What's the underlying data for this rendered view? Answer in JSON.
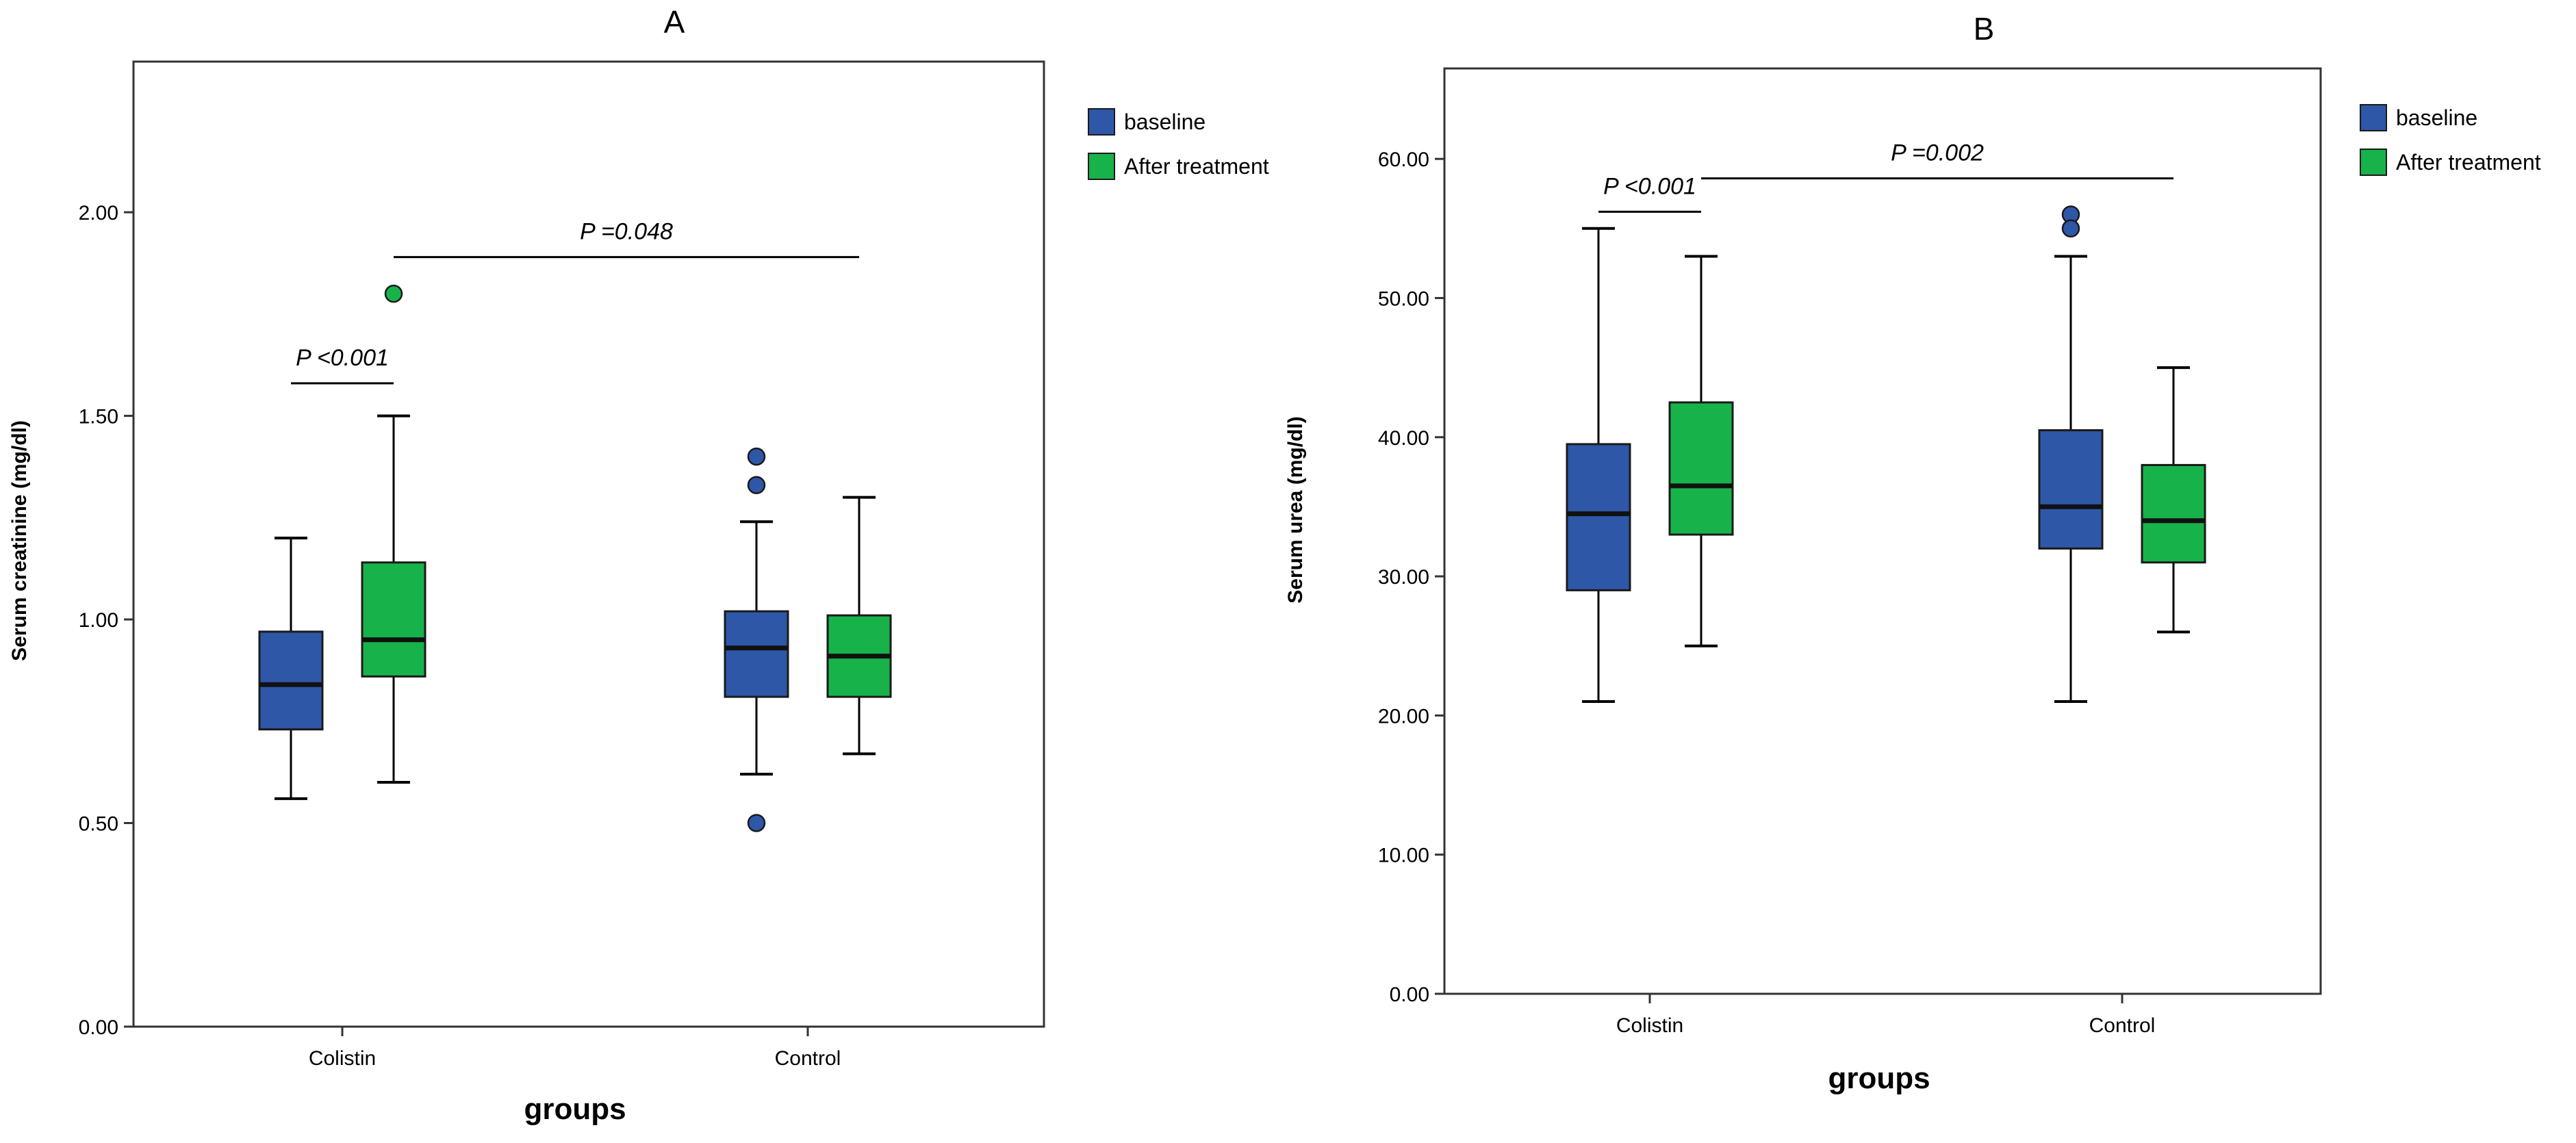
{
  "colors": {
    "baseline": "#2e57a8",
    "after": "#17b34a",
    "frame": "#333333",
    "median": "#111111"
  },
  "chart_data": [
    {
      "type": "box",
      "panel_label": "A",
      "ylabel": "Serum creatinine (mg/dl)",
      "xlabel": "groups",
      "ylim": [
        0,
        2.37
      ],
      "yticks": [
        0,
        0.5,
        1.0,
        1.5,
        2.0
      ],
      "ytick_labels": [
        "0.00",
        "0.50",
        "1.00",
        "1.50",
        "2.00"
      ],
      "categories": [
        "Colistin",
        "Control"
      ],
      "legend": [
        {
          "name": "baseline",
          "color": "#2e57a8"
        },
        {
          "name": "After treatment",
          "color": "#17b34a"
        }
      ],
      "boxes": [
        {
          "group": "Colistin",
          "series": "baseline",
          "min": 0.56,
          "q1": 0.73,
          "median": 0.84,
          "q3": 0.97,
          "max": 1.2,
          "outliers": []
        },
        {
          "group": "Colistin",
          "series": "After treatment",
          "min": 0.6,
          "q1": 0.86,
          "median": 0.95,
          "q3": 1.14,
          "max": 1.5,
          "outliers": [
            1.8
          ]
        },
        {
          "group": "Control",
          "series": "baseline",
          "min": 0.62,
          "q1": 0.81,
          "median": 0.93,
          "q3": 1.02,
          "max": 1.24,
          "outliers": [
            1.4,
            1.33,
            0.5
          ]
        },
        {
          "group": "Control",
          "series": "After treatment",
          "min": 0.67,
          "q1": 0.81,
          "median": 0.91,
          "q3": 1.01,
          "max": 1.3,
          "outliers": []
        }
      ],
      "annotations": [
        {
          "text": "P <0.001",
          "from": {
            "group": "Colistin",
            "series": "baseline"
          },
          "to": {
            "group": "Colistin",
            "series": "After treatment"
          },
          "y": 1.58
        },
        {
          "text": "P =0.048",
          "from": {
            "group": "Colistin",
            "series": "After treatment"
          },
          "to": {
            "group": "Control",
            "series": "After treatment"
          },
          "y": 1.89
        }
      ]
    },
    {
      "type": "box",
      "panel_label": "B",
      "ylabel": "Serum urea (mg/dl)",
      "xlabel": "groups",
      "ylim": [
        0,
        66.5
      ],
      "yticks": [
        0,
        10,
        20,
        30,
        40,
        50,
        60
      ],
      "ytick_labels": [
        "0.00",
        "10.00",
        "20.00",
        "30.00",
        "40.00",
        "50.00",
        "60.00"
      ],
      "categories": [
        "Colistin",
        "Control"
      ],
      "legend": [
        {
          "name": "baseline",
          "color": "#2e57a8"
        },
        {
          "name": "After treatment",
          "color": "#17b34a"
        }
      ],
      "boxes": [
        {
          "group": "Colistin",
          "series": "baseline",
          "min": 21,
          "q1": 29,
          "median": 34.5,
          "q3": 39.5,
          "max": 55,
          "outliers": []
        },
        {
          "group": "Colistin",
          "series": "After treatment",
          "min": 25,
          "q1": 33,
          "median": 36.5,
          "q3": 42.5,
          "max": 53,
          "outliers": []
        },
        {
          "group": "Control",
          "series": "baseline",
          "min": 21,
          "q1": 32,
          "median": 35,
          "q3": 40.5,
          "max": 53,
          "outliers": [
            56,
            55
          ]
        },
        {
          "group": "Control",
          "series": "After treatment",
          "min": 26,
          "q1": 31,
          "median": 34,
          "q3": 38,
          "max": 45,
          "outliers": []
        }
      ],
      "annotations": [
        {
          "text": "P <0.001",
          "from": {
            "group": "Colistin",
            "series": "baseline"
          },
          "to": {
            "group": "Colistin",
            "series": "After treatment"
          },
          "y": 56.2
        },
        {
          "text": "P =0.002",
          "from": {
            "group": "Colistin",
            "series": "After treatment"
          },
          "to": {
            "group": "Control",
            "series": "After treatment"
          },
          "y": 58.6
        }
      ]
    }
  ]
}
